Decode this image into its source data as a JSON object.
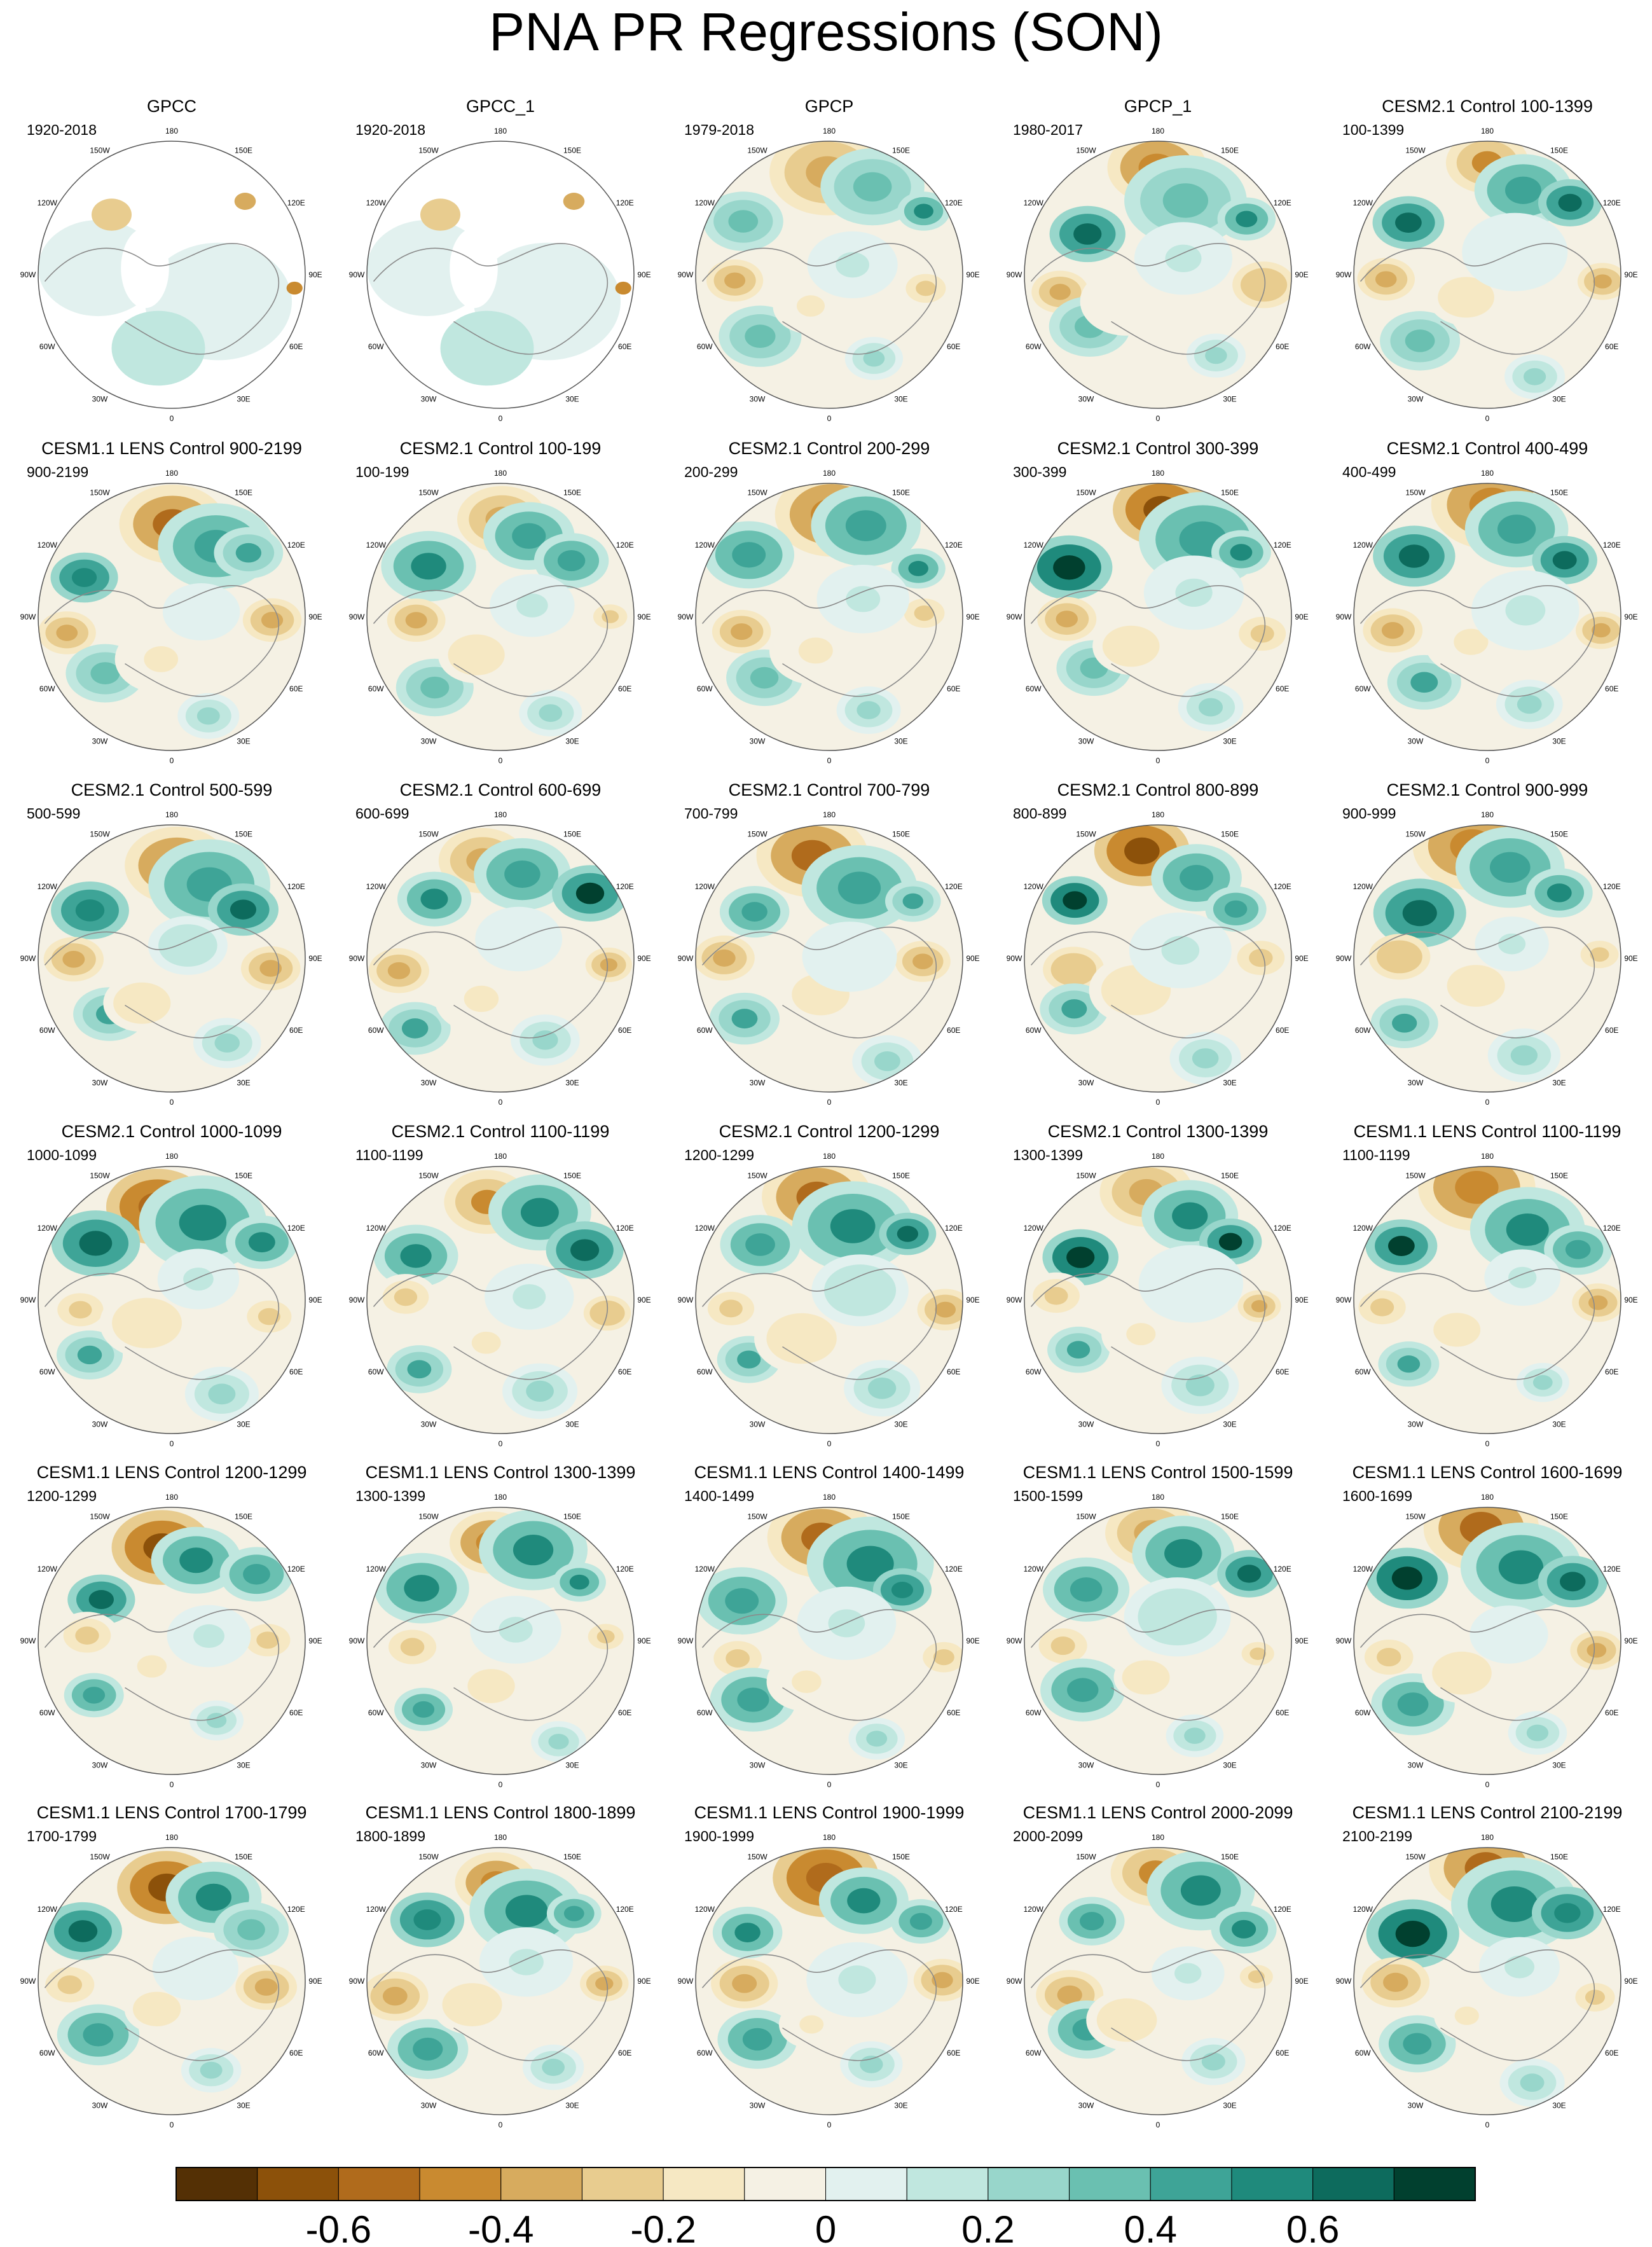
{
  "chart_data": {
    "type": "heatmap",
    "title": "PNA PR Regressions (SON)",
    "projection": "north polar stereographic",
    "longitude_labels": [
      "180",
      "150E",
      "120E",
      "90E",
      "60E",
      "30E",
      "0",
      "30W",
      "60W",
      "90W",
      "120W",
      "150W"
    ],
    "panels": [
      {
        "name": "GPCC",
        "years": "1920-2018",
        "pattern": "obs-land"
      },
      {
        "name": "GPCC_1",
        "years": "1920-2018",
        "pattern": "obs-land"
      },
      {
        "name": "GPCP",
        "years": "1979-2018",
        "pattern": "obs-global"
      },
      {
        "name": "GPCP_1",
        "years": "1980-2017",
        "pattern": "obs-global"
      },
      {
        "name": "CESM2.1 Control 100-1399",
        "years": "100-1399",
        "pattern": "model"
      },
      {
        "name": "CESM1.1 LENS Control 900-2199",
        "years": "900-2199",
        "pattern": "model"
      },
      {
        "name": "CESM2.1 Control 100-199",
        "years": "100-199",
        "pattern": "model"
      },
      {
        "name": "CESM2.1 Control 200-299",
        "years": "200-299",
        "pattern": "model"
      },
      {
        "name": "CESM2.1 Control 300-399",
        "years": "300-399",
        "pattern": "model"
      },
      {
        "name": "CESM2.1 Control 400-499",
        "years": "400-499",
        "pattern": "model"
      },
      {
        "name": "CESM2.1 Control 500-599",
        "years": "500-599",
        "pattern": "model"
      },
      {
        "name": "CESM2.1 Control 600-699",
        "years": "600-699",
        "pattern": "model"
      },
      {
        "name": "CESM2.1 Control 700-799",
        "years": "700-799",
        "pattern": "model"
      },
      {
        "name": "CESM2.1 Control 800-899",
        "years": "800-899",
        "pattern": "model"
      },
      {
        "name": "CESM2.1 Control 900-999",
        "years": "900-999",
        "pattern": "model"
      },
      {
        "name": "CESM2.1 Control 1000-1099",
        "years": "1000-1099",
        "pattern": "model"
      },
      {
        "name": "CESM2.1 Control 1100-1199",
        "years": "1100-1199",
        "pattern": "model"
      },
      {
        "name": "CESM2.1 Control 1200-1299",
        "years": "1200-1299",
        "pattern": "model"
      },
      {
        "name": "CESM2.1 Control 1300-1399",
        "years": "1300-1399",
        "pattern": "model"
      },
      {
        "name": "CESM1.1 LENS Control 1100-1199",
        "years": "1100-1199",
        "pattern": "model"
      },
      {
        "name": "CESM1.1 LENS Control 1200-1299",
        "years": "1200-1299",
        "pattern": "model"
      },
      {
        "name": "CESM1.1 LENS Control 1300-1399",
        "years": "1300-1399",
        "pattern": "model"
      },
      {
        "name": "CESM1.1 LENS Control 1400-1499",
        "years": "1400-1499",
        "pattern": "model"
      },
      {
        "name": "CESM1.1 LENS Control 1500-1599",
        "years": "1500-1599",
        "pattern": "model"
      },
      {
        "name": "CESM1.1 LENS Control 1600-1699",
        "years": "1600-1699",
        "pattern": "model"
      },
      {
        "name": "CESM1.1 LENS Control 1700-1799",
        "years": "1700-1799",
        "pattern": "model"
      },
      {
        "name": "CESM1.1 LENS Control 1800-1899",
        "years": "1800-1899",
        "pattern": "model"
      },
      {
        "name": "CESM1.1 LENS Control 1900-1999",
        "years": "1900-1999",
        "pattern": "model"
      },
      {
        "name": "CESM1.1 LENS Control 2000-2099",
        "years": "2000-2099",
        "pattern": "model"
      },
      {
        "name": "CESM1.1 LENS Control 2100-2199",
        "years": "2100-2199",
        "pattern": "model"
      }
    ],
    "colorbar": {
      "levels": [
        -0.8,
        -0.7,
        -0.6,
        -0.5,
        -0.4,
        -0.3,
        -0.2,
        -0.1,
        0,
        0.1,
        0.2,
        0.3,
        0.4,
        0.5,
        0.6,
        0.7,
        0.8
      ],
      "colors": [
        "#543005",
        "#8c510a",
        "#b06b1c",
        "#c98a30",
        "#d7ab5e",
        "#e8cc8f",
        "#f6e8c3",
        "#f5f1e4",
        "#e2f1ef",
        "#c0e7df",
        "#98d6cb",
        "#6ac0b1",
        "#3ea497",
        "#1f8a7c",
        "#0d6b5d",
        "#01402f"
      ],
      "tick_labels": [
        "-0.6",
        "-0.4",
        "-0.2",
        "0",
        "0.2",
        "0.4",
        "0.6"
      ],
      "tick_values": [
        -0.6,
        -0.4,
        -0.2,
        0,
        0.2,
        0.4,
        0.6
      ]
    }
  }
}
